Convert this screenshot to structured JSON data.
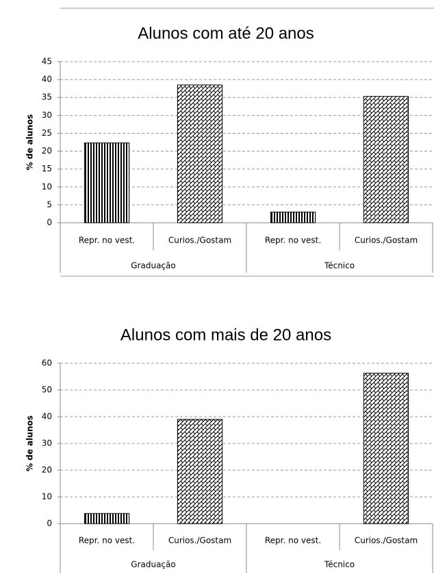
{
  "chart_data": [
    {
      "type": "bar",
      "title": "Alunos com até 20 anos",
      "y_label": "% de alunos",
      "categories": [
        "Repr. no vest.",
        "Curios./Gostam",
        "Repr. no vest.",
        "Curios./Gostam"
      ],
      "groups": [
        "Graduação",
        "Técnico"
      ],
      "values": [
        22.3,
        38.5,
        3,
        35.3
      ],
      "ylim": [
        0,
        45
      ],
      "yticks": [
        0,
        5,
        10,
        15,
        20,
        25,
        30,
        35,
        40,
        45
      ],
      "grid": true
    },
    {
      "type": "bar",
      "title": "Alunos com mais de 20 anos",
      "y_label": "% de alunos",
      "categories": [
        "Repr. no vest.",
        "Curios./Gostam",
        "Repr. no vest.",
        "Curios./Gostam"
      ],
      "groups": [
        "Graduação",
        "Técnico"
      ],
      "values": [
        3.8,
        39,
        0,
        56.3
      ],
      "ylim": [
        0,
        60
      ],
      "yticks": [
        0,
        10,
        20,
        30,
        40,
        50,
        60
      ],
      "grid": true
    }
  ]
}
